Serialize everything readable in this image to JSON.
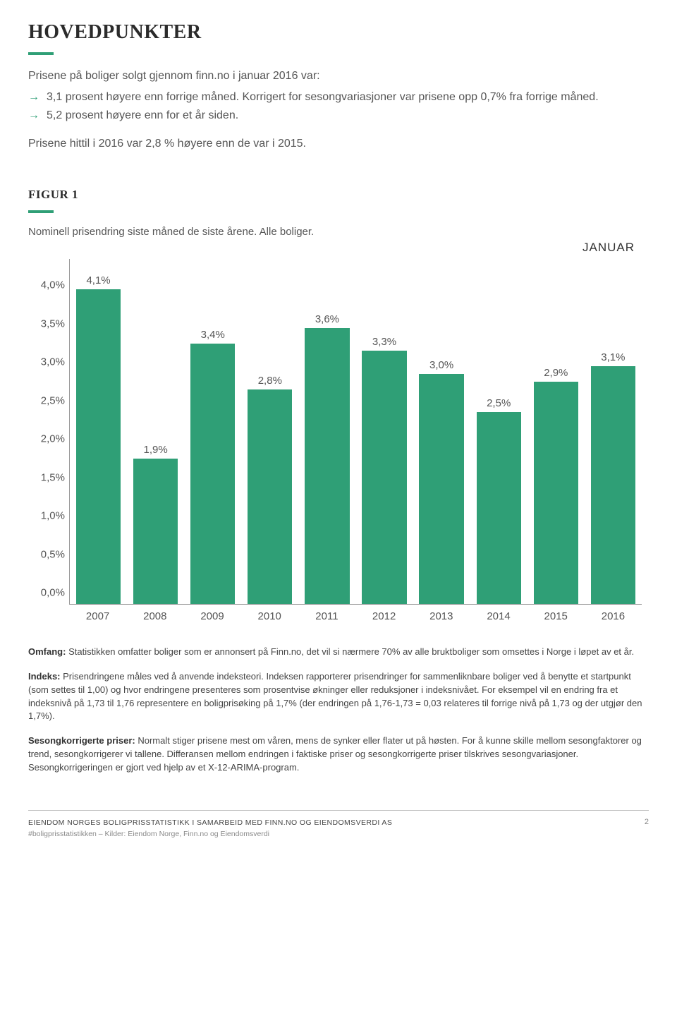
{
  "heading": "HOVEDPUNKTER",
  "intro_line": "Prisene på boliger solgt gjennom finn.no i januar 2016 var:",
  "bullet1": "3,1 prosent høyere enn forrige måned. Korrigert for sesongvariasjoner var prisene opp 0,7% fra forrige måned.",
  "bullet2": "5,2 prosent høyere enn for et år siden.",
  "intro_after": "Prisene hittil i 2016 var 2,8 % høyere enn de var i 2015.",
  "figure_label": "FIGUR 1",
  "figure_subtitle": "Nominell prisendring siste måned de siste årene. Alle boliger.",
  "month": "JANUAR",
  "chart": {
    "type": "bar",
    "categories": [
      "2007",
      "2008",
      "2009",
      "2010",
      "2011",
      "2012",
      "2013",
      "2014",
      "2015",
      "2016"
    ],
    "values": [
      4.1,
      1.9,
      3.4,
      2.8,
      3.6,
      3.3,
      3.0,
      2.5,
      2.9,
      3.1
    ],
    "display_values": [
      "4,1%",
      "1,9%",
      "3,4%",
      "2,8%",
      "3,6%",
      "3,3%",
      "3,0%",
      "2,5%",
      "2,9%",
      "3,1%"
    ],
    "bar_color": "#2f9f76",
    "yticks": [
      0.0,
      0.5,
      1.0,
      1.5,
      2.0,
      2.5,
      3.0,
      3.5,
      4.0
    ],
    "ytick_labels": [
      "0,0%",
      "0,5%",
      "1,0%",
      "1,5%",
      "2,0%",
      "2,5%",
      "3,0%",
      "3,5%",
      "4,0%"
    ],
    "ymax": 4.5,
    "bar_width": 0.78,
    "axis_color": "#999999",
    "label_color": "#555555",
    "label_fontsize": 15,
    "background_color": "#ffffff"
  },
  "para_omfang_lead": "Omfang:",
  "para_omfang": " Statistikken omfatter boliger som er annonsert på Finn.no, det vil si nærmere 70% av alle bruktboliger som omsettes i Norge i løpet av et år.",
  "para_indeks_lead": "Indeks:",
  "para_indeks": " Prisendringene måles ved å anvende indeksteori. Indeksen rapporterer prisendringer for sammenliknbare boliger ved å benytte et startpunkt (som settes til 1,00) og hvor endringene presenteres som prosentvise økninger eller reduksjoner i indeksnivået. For eksempel vil en endring fra et indeksnivå på 1,73 til 1,76 representere en boligprisøking på 1,7% (der endringen på 1,76-1,73 = 0,03 relateres til forrige nivå på 1,73 og der utgjør den 1,7%).",
  "para_sesong_lead": "Sesongkorrigerte priser:",
  "para_sesong": " Normalt stiger prisene mest om våren, mens de synker eller flater ut på høsten. For å kunne skille mellom sesongfaktorer og trend, sesongkorrigerer vi tallene. Differansen mellom endringen i faktiske priser og sesongkorrigerte priser tilskrives sesongvariasjoner. Sesongkorrigeringen er gjort ved hjelp av et X-12-ARIMA-program.",
  "footer_line1": "EIENDOM NORGES BOLIGPRISSTATISTIKK I SAMARBEID MED FINN.NO OG EIENDOMSVERDI AS",
  "footer_line2": "#boligprisstatistikken – Kilder: Eiendom Norge, Finn.no og Eiendomsverdi",
  "page_number": "2",
  "colors": {
    "accent": "#2f9f76",
    "text": "#333333",
    "subtext": "#555555",
    "rule": "#bbbbbb"
  }
}
